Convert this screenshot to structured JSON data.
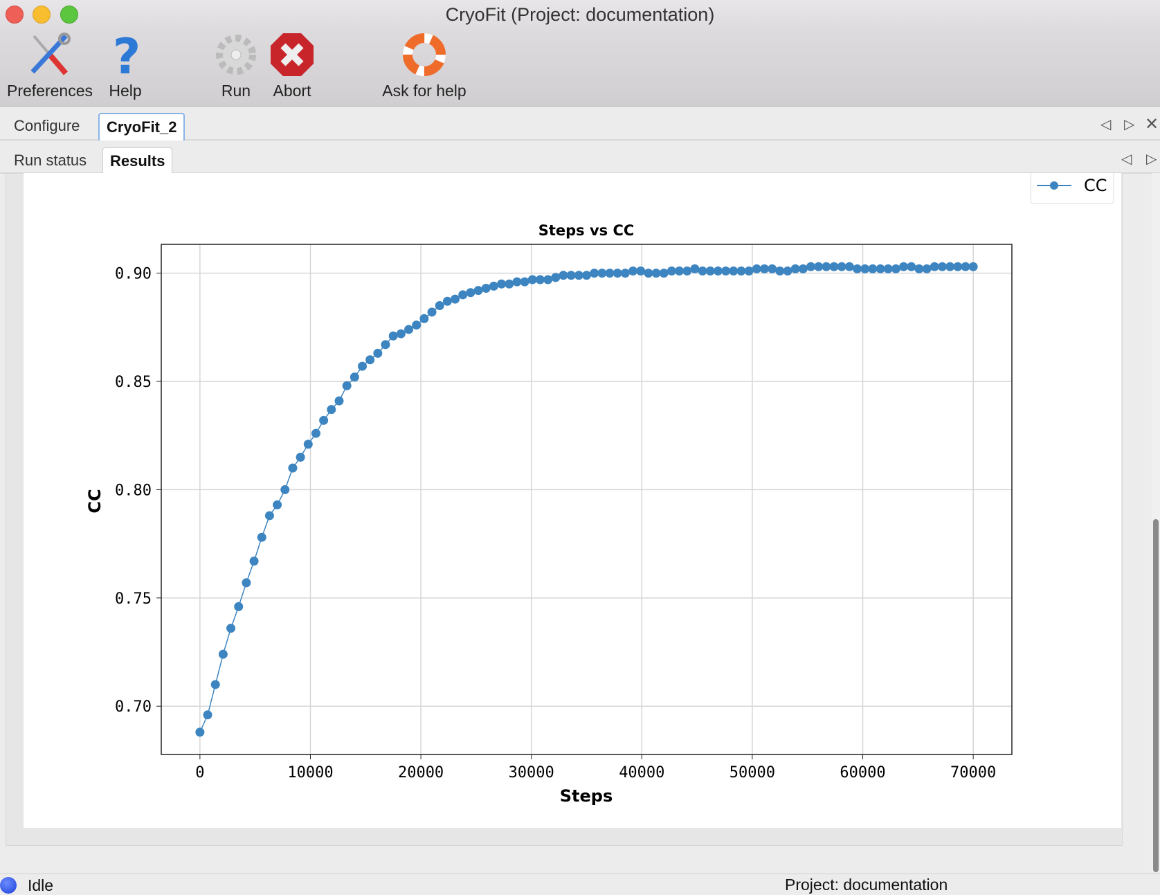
{
  "window": {
    "title": "CryoFit (Project: documentation)"
  },
  "toolbar": {
    "items": [
      {
        "label": "Preferences",
        "icon": "tools-icon"
      },
      {
        "label": "Help",
        "icon": "question-icon"
      },
      {
        "label": "Run",
        "icon": "gear-icon"
      },
      {
        "label": "Abort",
        "icon": "abort-icon"
      },
      {
        "label": "Ask for help",
        "icon": "lifebuoy-icon"
      }
    ]
  },
  "tabs": {
    "outer": [
      {
        "label": "Configure"
      },
      {
        "label": "CryoFit_2",
        "selected": true
      }
    ],
    "inner": [
      {
        "label": "Run status"
      },
      {
        "label": "Results",
        "selected": true
      }
    ]
  },
  "status": {
    "state": "Idle",
    "project": "Project: documentation",
    "indicator_color": "#1a3fd8"
  },
  "chart_data": {
    "type": "line",
    "title": "Steps vs CC",
    "xlabel": "Steps",
    "ylabel": "CC",
    "xlim": [
      -3500,
      73500
    ],
    "ylim": [
      0.6777,
      0.9133
    ],
    "xticks": [
      "0",
      "10000",
      "20000",
      "30000",
      "40000",
      "50000",
      "60000",
      "70000"
    ],
    "yticks": [
      "0.70",
      "0.75",
      "0.80",
      "0.85",
      "0.90"
    ],
    "grid": true,
    "legend": "top-right",
    "color": "#3d85c0",
    "series": [
      {
        "name": "CC",
        "x": [
          0,
          700,
          1400,
          2100,
          2800,
          3500,
          4200,
          4900,
          5600,
          6300,
          7000,
          7700,
          8400,
          9100,
          9800,
          10500,
          11200,
          11900,
          12600,
          13300,
          14000,
          14700,
          15400,
          16100,
          16800,
          17500,
          18200,
          18900,
          19600,
          20300,
          21000,
          21700,
          22400,
          23100,
          23800,
          24500,
          25200,
          25900,
          26600,
          27300,
          28000,
          28700,
          29400,
          30100,
          30800,
          31500,
          32200,
          32900,
          33600,
          34300,
          35000,
          35700,
          36400,
          37100,
          37800,
          38500,
          39200,
          39900,
          40600,
          41300,
          42000,
          42700,
          43400,
          44100,
          44800,
          45500,
          46200,
          46900,
          47600,
          48300,
          49000,
          49700,
          50400,
          51100,
          51800,
          52500,
          53200,
          53900,
          54600,
          55300,
          56000,
          56700,
          57400,
          58100,
          58800,
          59500,
          60200,
          60900,
          61600,
          62300,
          63000,
          63700,
          64400,
          65100,
          65800,
          66500,
          67200,
          67900,
          68600,
          69300,
          70000
        ],
        "y": [
          0.688,
          0.696,
          0.71,
          0.724,
          0.736,
          0.746,
          0.757,
          0.767,
          0.778,
          0.788,
          0.793,
          0.8,
          0.81,
          0.815,
          0.821,
          0.826,
          0.832,
          0.837,
          0.841,
          0.848,
          0.852,
          0.857,
          0.86,
          0.863,
          0.867,
          0.871,
          0.872,
          0.874,
          0.876,
          0.879,
          0.882,
          0.885,
          0.887,
          0.888,
          0.89,
          0.891,
          0.892,
          0.893,
          0.894,
          0.895,
          0.895,
          0.896,
          0.896,
          0.897,
          0.897,
          0.897,
          0.898,
          0.899,
          0.899,
          0.899,
          0.899,
          0.9,
          0.9,
          0.9,
          0.9,
          0.9,
          0.901,
          0.901,
          0.9,
          0.9,
          0.9,
          0.901,
          0.901,
          0.901,
          0.902,
          0.901,
          0.901,
          0.901,
          0.901,
          0.901,
          0.901,
          0.901,
          0.902,
          0.902,
          0.902,
          0.901,
          0.901,
          0.902,
          0.902,
          0.903,
          0.903,
          0.903,
          0.903,
          0.903,
          0.903,
          0.902,
          0.902,
          0.902,
          0.902,
          0.902,
          0.902,
          0.903,
          0.903,
          0.902,
          0.902,
          0.903,
          0.903,
          0.903,
          0.903,
          0.903,
          0.903
        ]
      }
    ]
  }
}
